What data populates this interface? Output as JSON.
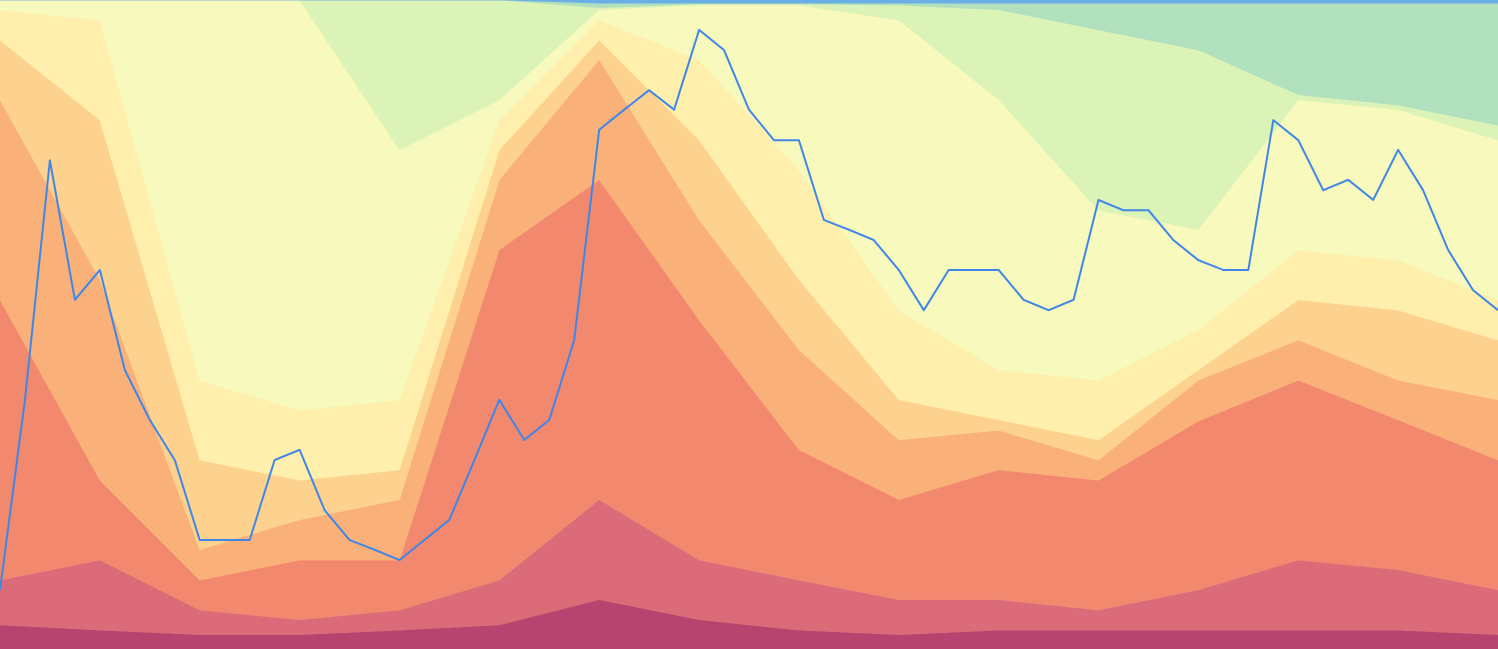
{
  "chart_data": [
    {
      "type": "area",
      "stacked": true,
      "ylim": [
        0,
        100
      ],
      "series": [
        {
          "color": "#b5446e",
          "values": [
            3.7,
            2.9,
            2.2,
            2.2,
            2.9,
            3.7,
            7.6,
            4.5,
            2.9,
            2.2,
            2.9,
            2.9,
            2.9,
            2.9,
            2.9,
            2.2
          ]
        },
        {
          "color": "#dc6b7a",
          "values": [
            6.9,
            10.8,
            3.8,
            2.3,
            3.1,
            6.9,
            15.4,
            9.2,
            7.7,
            5.4,
            4.7,
            3.1,
            6.2,
            10.8,
            9.3,
            6.9
          ]
        },
        {
          "color": "#f2896f",
          "values": [
            43.2,
            12.3,
            4.6,
            9.2,
            7.7,
            50.9,
            49.3,
            37.0,
            20.1,
            15.4,
            20.0,
            20.0,
            26.0,
            27.7,
            23.1,
            20.0
          ]
        },
        {
          "color": "#f9b179",
          "values": [
            30.8,
            30.9,
            4.7,
            6.2,
            9.3,
            10.8,
            18.5,
            15.4,
            15.4,
            9.2,
            6.1,
            3.1,
            6.3,
            6.2,
            6.1,
            9.3
          ]
        },
        {
          "color": "#fdd28f",
          "values": [
            9.2,
            24.6,
            13.8,
            6.1,
            4.6,
            4.6,
            3.0,
            12.3,
            10.8,
            6.2,
            1.6,
            3.1,
            1.6,
            6.2,
            10.8,
            9.2
          ]
        },
        {
          "color": "#feefac",
          "values": [
            4.7,
            15.4,
            12.3,
            10.8,
            10.8,
            4.6,
            3.1,
            12.4,
            16.9,
            13.8,
            7.7,
            9.2,
            6.2,
            7.7,
            7.7,
            6.2
          ]
        },
        {
          "color": "#f8fabd",
          "values": [
            1.5,
            3.1,
            58.6,
            63.2,
            38.5,
            3.1,
            1.6,
            8.4,
            25.4,
            44.7,
            41.6,
            26.2,
            15.4,
            23.1,
            23.2,
            24.6
          ]
        },
        {
          "color": "#dbf3b6",
          "values": [
            0,
            0,
            0,
            0,
            23.1,
            15.4,
            0.3,
            0.2,
            0.2,
            2.3,
            13.9,
            27.8,
            27.7,
            0.8,
            0.7,
            2.3
          ]
        },
        {
          "color": "#b0e0bd",
          "values": [
            0,
            0,
            0,
            0,
            0,
            0,
            0.7,
            0.1,
            0.1,
            0.3,
            1.0,
            4.1,
            7.2,
            14.1,
            15.7,
            18.8
          ]
        },
        {
          "color": "#6aaee6",
          "values": [
            0,
            0,
            0,
            0,
            0,
            0,
            0.5,
            0.5,
            0.5,
            0.5,
            0.5,
            0.5,
            0.5,
            0.5,
            0.5,
            0.5
          ]
        }
      ]
    },
    {
      "type": "line",
      "ylim": [
        0,
        100
      ],
      "series": [
        {
          "color": "#3f86e8",
          "values": [
            9.1,
            38.4,
            75.3,
            53.8,
            58.4,
            43.0,
            35.3,
            29.1,
            16.8,
            16.8,
            16.8,
            29.1,
            30.7,
            21.4,
            16.8,
            15.3,
            13.7,
            16.8,
            19.9,
            29.1,
            38.4,
            32.2,
            35.3,
            47.6,
            80.0,
            83.1,
            86.1,
            83.1,
            95.4,
            92.3,
            83.1,
            78.4,
            78.4,
            66.1,
            64.6,
            63.0,
            58.4,
            52.2,
            58.4,
            58.4,
            58.4,
            53.8,
            52.2,
            53.8,
            69.2,
            67.6,
            67.6,
            63.0,
            59.9,
            58.4,
            58.4,
            81.5,
            78.4,
            70.7,
            72.3,
            69.2,
            76.9,
            70.7,
            61.5,
            55.3,
            52.2
          ]
        }
      ]
    }
  ]
}
